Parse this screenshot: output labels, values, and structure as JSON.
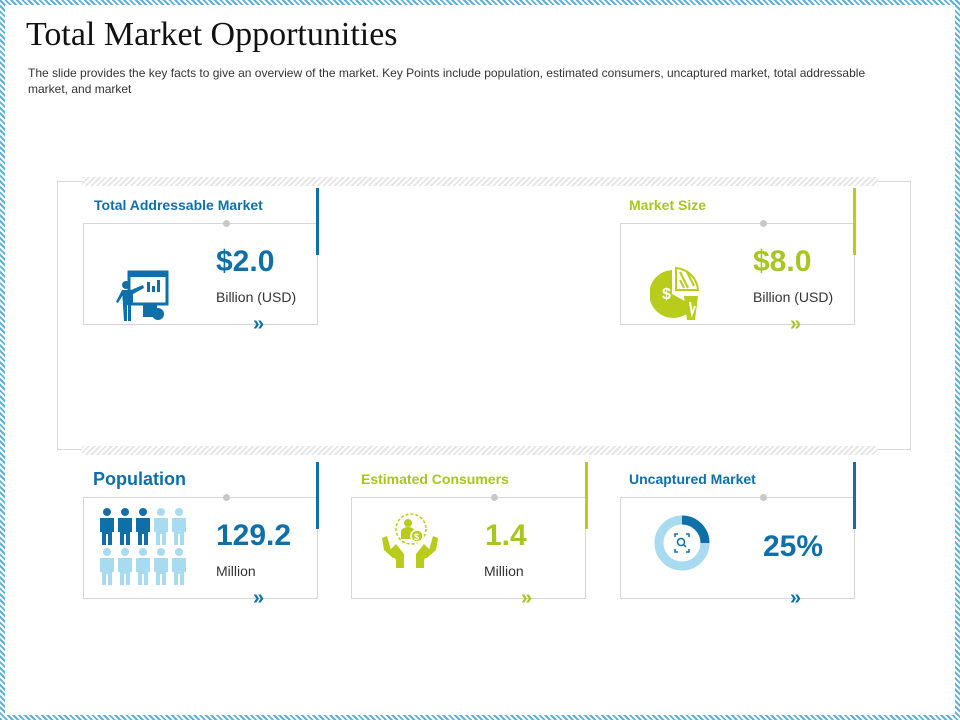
{
  "title": "Total Market Opportunities",
  "subtitle": "The slide provides  the key facts to give  an overview  of the market. Key Points include population, estimated consumers, uncaptured market, total addressable  market, and market",
  "colors": {
    "blue": "#0f6fa8",
    "green": "#a9c520",
    "light_blue": "#a8daf0"
  },
  "cards": {
    "tam": {
      "title": "Total Addressable Market",
      "value": "$2.0",
      "unit": "Billion (USD)",
      "chevron": "»",
      "icon": "presentation-icon",
      "accent": "blue"
    },
    "market_size": {
      "title": "Market Size",
      "value": "$8.0",
      "unit": "Billion (USD)",
      "chevron": "»",
      "icon": "pie-chart-dollar-icon",
      "accent": "green"
    },
    "population": {
      "title": "Population",
      "value": "129.2",
      "unit": "Million",
      "chevron": "»",
      "icon": "people-group-icon",
      "accent": "blue"
    },
    "consumers": {
      "title": "Estimated Consumers",
      "value": "1.4",
      "unit": "Million",
      "chevron": "»",
      "icon": "hands-coin-icon",
      "accent": "green"
    },
    "uncaptured": {
      "title": "Uncaptured Market",
      "value": "25%",
      "chevron": "»",
      "icon": "donut-progress-icon",
      "accent": "blue",
      "progress_fraction": 0.25
    }
  }
}
